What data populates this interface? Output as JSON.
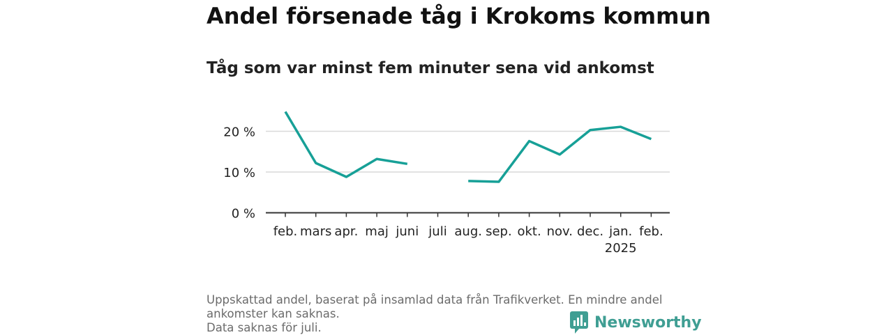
{
  "title": "Andel försenade tåg i Krokoms kommun",
  "subtitle": "Tåg som var minst fem minuter sena vid ankomst",
  "footnote": {
    "line1": "Uppskattad andel, baserat på insamlad data från Trafikverket. En mindre andel",
    "line2": "ankomster kan saknas.",
    "line3": "Data saknas för juli."
  },
  "brand": {
    "name": "Newsworthy",
    "icon": "newsworthy-logo-icon",
    "color": "#3f9e93"
  },
  "colors": {
    "line": "#17a097",
    "grid": "#d9d9d9",
    "axis": "#333333"
  },
  "chart_data": {
    "type": "line",
    "categories": [
      "feb.",
      "mars",
      "apr.",
      "maj",
      "juni",
      "juli",
      "aug.",
      "sep.",
      "okt.",
      "nov.",
      "dec.",
      "jan.",
      "feb."
    ],
    "year_labels": [
      "",
      "",
      "",
      "",
      "",
      "",
      "",
      "",
      "",
      "",
      "",
      "2025",
      ""
    ],
    "values": [
      24.8,
      12.2,
      8.8,
      13.2,
      12.0,
      null,
      7.8,
      7.6,
      17.6,
      14.3,
      20.3,
      21.1,
      18.1
    ],
    "ylim": [
      0,
      28
    ],
    "yticks": [
      0,
      10,
      20
    ],
    "ytick_labels": [
      "0 %",
      "10 %",
      "20 %"
    ],
    "grid": true,
    "xlabel": "",
    "ylabel": ""
  }
}
